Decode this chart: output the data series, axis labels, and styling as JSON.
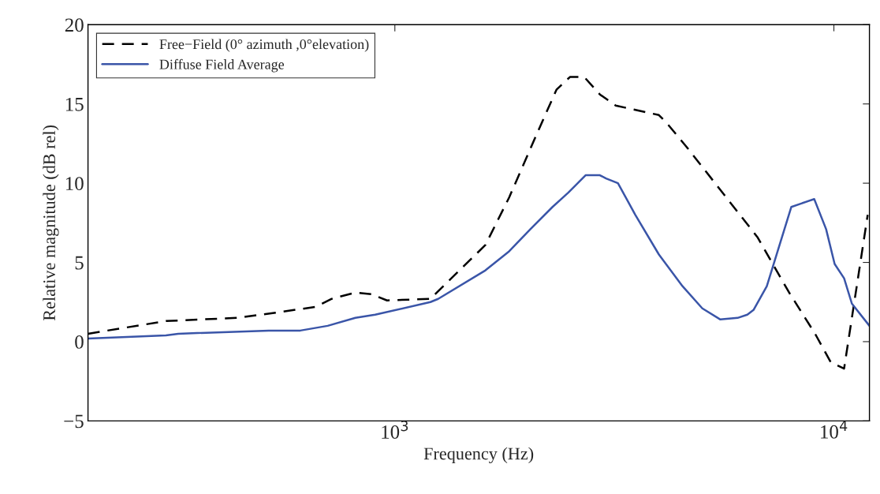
{
  "chart_data": {
    "type": "line",
    "xlabel": "Frequency (Hz)",
    "ylabel": "Relative magnitude (dB rel)",
    "log": "x",
    "xlim": [
      200,
      12050
    ],
    "xticks": [
      {
        "value": 1000,
        "label": "10$^{3}$"
      },
      {
        "value": 10000,
        "label": "10$^{4}$"
      }
    ],
    "ylim": [
      -5,
      20
    ],
    "yticks": [
      {
        "value": -5,
        "label": "−5"
      },
      0,
      5,
      10,
      15,
      20
    ],
    "grid": false,
    "legend": "top left",
    "series": [
      {
        "name": "Free−Field (0° azimuth ,0°elevation)",
        "color": "#000000",
        "line_style": "dashed",
        "x": [
          200,
          301,
          437,
          527,
          661,
          718,
          813,
          884,
          960,
          1205,
          1608,
          1821,
          2105,
          2334,
          2505,
          2700,
          2931,
          3183,
          3994,
          4160,
          4615,
          6695,
          7907,
          9060,
          9840,
          10550,
          11940
        ],
        "values": [
          0.5,
          1.3,
          1.5,
          1.8,
          2.2,
          2.7,
          3.1,
          3.0,
          2.6,
          2.7,
          6.1,
          9.1,
          13.1,
          15.9,
          16.7,
          16.7,
          15.6,
          14.9,
          14.3,
          13.8,
          12.3,
          6.6,
          3.1,
          0.5,
          -1.3,
          -1.7,
          8.0
        ]
      },
      {
        "name": "Diffuse Field Average",
        "color": "#3a55a8",
        "line_style": "solid",
        "x": [
          200,
          301,
          321,
          516,
          609,
          703,
          813,
          902,
          1205,
          1255,
          1608,
          1821,
          2036,
          2286,
          2483,
          2719,
          2931,
          3027,
          3222,
          3530,
          3994,
          4521,
          5015,
          5513,
          6036,
          6351,
          6560,
          7035,
          8000,
          9020,
          9600,
          10040,
          10550,
          10990,
          12050
        ],
        "values": [
          0.2,
          0.4,
          0.5,
          0.7,
          0.7,
          1.0,
          1.5,
          1.7,
          2.5,
          2.7,
          4.5,
          5.7,
          7.1,
          8.5,
          9.4,
          10.5,
          10.5,
          10.3,
          10.0,
          8.0,
          5.5,
          3.5,
          2.1,
          1.4,
          1.5,
          1.7,
          2.0,
          3.5,
          8.5,
          9.0,
          7.1,
          4.9,
          4.0,
          2.4,
          1.0
        ]
      }
    ]
  }
}
